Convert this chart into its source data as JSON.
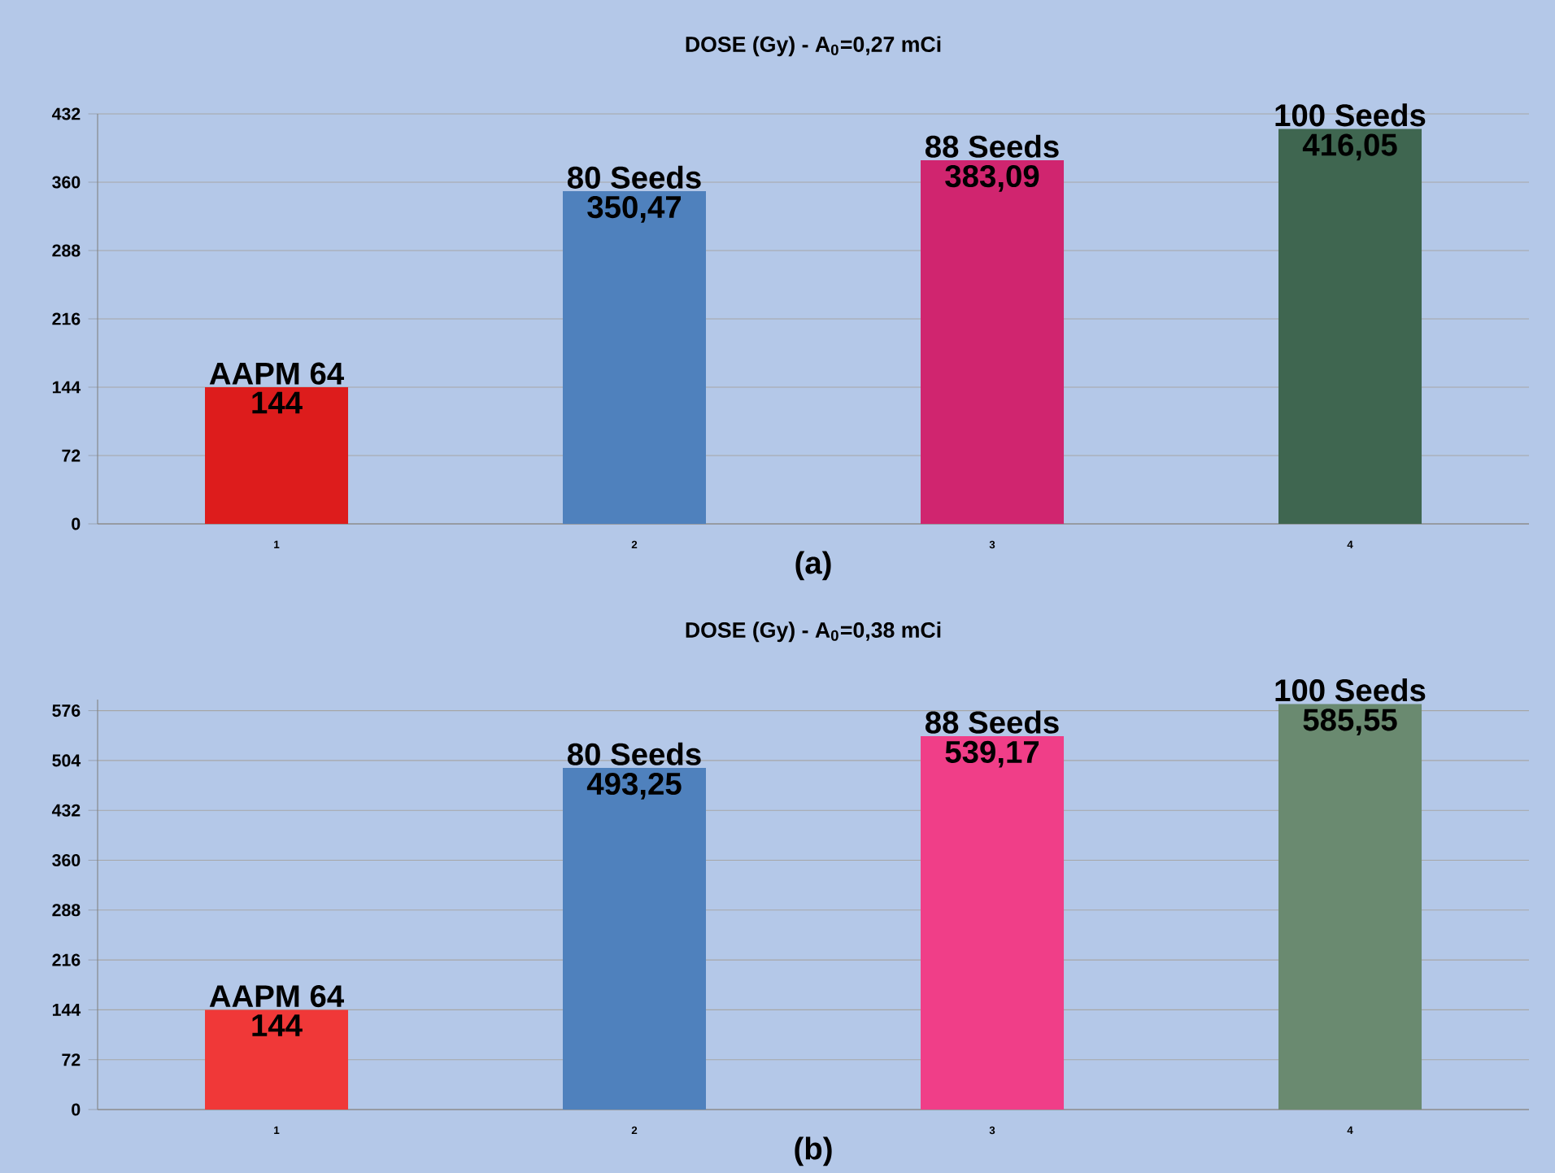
{
  "chart_data": [
    {
      "type": "bar",
      "title": "DOSE (Gy) - A$_{0}$=0,27 mCi",
      "categories": [
        "1",
        "2",
        "3",
        "4"
      ],
      "values": [
        144,
        350.47,
        383.09,
        416.05
      ],
      "value_labels": [
        "144",
        "350,47",
        "383,09",
        "416,05"
      ],
      "colors": [
        "#dd1c1c",
        "#4f81bd",
        "#d0256f",
        "#3f6650"
      ],
      "ylim": [
        0,
        432
      ],
      "yticks": [
        0,
        72,
        144,
        216,
        288,
        360,
        432
      ],
      "grid": "y",
      "annotations": [
        {
          "text": "AAPM 64",
          "x": "1",
          "y": 144
        },
        {
          "text": "80 Seeds",
          "x": "2",
          "y": 350.47
        },
        {
          "text": "88 Seeds",
          "x": "3",
          "y": 383.09
        },
        {
          "text": "100 Seeds",
          "x": "4",
          "y": 416.05
        },
        "(a)"
      ]
    },
    {
      "type": "bar",
      "title": "DOSE (Gy) - A$_{0}$=0,38 mCi",
      "categories": [
        "1",
        "2",
        "3",
        "4"
      ],
      "values": [
        144,
        493.25,
        539.17,
        585.55
      ],
      "value_labels": [
        "144",
        "493,25",
        "539,17",
        "585,55"
      ],
      "colors": [
        "#f03838",
        "#4f81bd",
        "#f03e88",
        "#6a8a70"
      ],
      "ylim": [
        0,
        592
      ],
      "yticks": [
        0,
        72,
        144,
        216,
        288,
        360,
        432,
        504,
        576
      ],
      "grid": "y",
      "annotations": [
        {
          "text": "AAPM 64",
          "x": "1",
          "y": 144
        },
        {
          "text": "80 Seeds",
          "x": "2",
          "y": 493.25
        },
        {
          "text": "88 Seeds",
          "x": "3",
          "y": 539.17
        },
        {
          "text": "100 Seeds",
          "x": "4",
          "y": 585.55
        },
        "(b)"
      ]
    }
  ]
}
